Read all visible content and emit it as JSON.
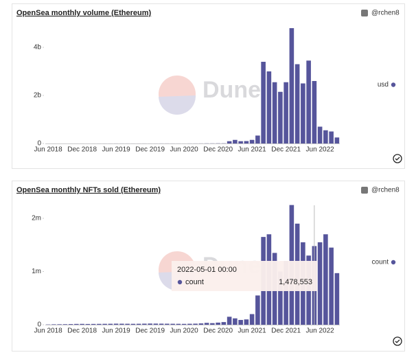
{
  "chart_data": [
    {
      "type": "bar",
      "title": "OpenSea monthly volume (Ethereum)",
      "author": "@rchen8",
      "watermark": "Dune",
      "categories": [
        "Jun 2018",
        null,
        null,
        null,
        null,
        null,
        "Dec 2018",
        null,
        null,
        null,
        null,
        null,
        "Jun 2019",
        null,
        null,
        null,
        null,
        null,
        "Dec 2019",
        null,
        null,
        null,
        null,
        null,
        "Jun 2020",
        null,
        null,
        null,
        null,
        null,
        "Dec 2020",
        null,
        null,
        null,
        null,
        null,
        "Jun 2021",
        null,
        null,
        null,
        null,
        null,
        "Dec 2021",
        null,
        null,
        null,
        null,
        null,
        "Jun 2022",
        null,
        null,
        null
      ],
      "series": [
        {
          "name": "usd",
          "color": "#56559b",
          "values": [
            400000,
            800000,
            600000,
            500000,
            700000,
            900000,
            1200000,
            1000000,
            1300000,
            1400000,
            1800000,
            2000000,
            2600000,
            2200000,
            2100000,
            1800000,
            2000000,
            2300000,
            1900000,
            2000000,
            2800000,
            3000000,
            2500000,
            2300000,
            1500000,
            2800000,
            3300000,
            4000000,
            6000000,
            6000000,
            8000000,
            8000000,
            95000000,
            150000000,
            95000000,
            100000000,
            150000000,
            330000000,
            3400000000,
            3000000000,
            2550000000,
            2150000000,
            2550000000,
            4800000000,
            3300000000,
            2500000000,
            3450000000,
            2600000000,
            700000000,
            550000000,
            500000000,
            250000000
          ]
        }
      ],
      "ylim": [
        0,
        5000000000
      ],
      "yticks": [
        0,
        {
          "value": 2000000000,
          "label": "2b"
        },
        {
          "value": 4000000000,
          "label": "4b"
        }
      ],
      "grid": false
    },
    {
      "type": "bar",
      "title": "OpenSea monthly NFTs sold (Ethereum)",
      "author": "@rchen8",
      "watermark": "Dune",
      "categories": [
        "Jun 2018",
        null,
        null,
        null,
        null,
        null,
        "Dec 2018",
        null,
        null,
        null,
        null,
        null,
        "Jun 2019",
        null,
        null,
        null,
        null,
        null,
        "Dec 2019",
        null,
        null,
        null,
        null,
        null,
        "Jun 2020",
        null,
        null,
        null,
        null,
        null,
        "Dec 2020",
        null,
        null,
        null,
        null,
        null,
        "Jun 2021",
        null,
        null,
        null,
        null,
        null,
        "Dec 2021",
        null,
        null,
        null,
        null,
        null,
        "Jun 2022",
        null,
        null,
        null
      ],
      "series": [
        {
          "name": "count",
          "color": "#56559b",
          "values": [
            5000,
            8000,
            9000,
            10000,
            12000,
            15000,
            16000,
            14000,
            15000,
            16000,
            17000,
            18000,
            20000,
            19000,
            18000,
            17000,
            18000,
            20000,
            22000,
            21000,
            20000,
            19000,
            18000,
            17000,
            16000,
            18000,
            20000,
            25000,
            35000,
            30000,
            40000,
            50000,
            150000,
            120000,
            90000,
            100000,
            200000,
            550000,
            1650000,
            1700000,
            1350000,
            1000000,
            1200000,
            2250000,
            1900000,
            1550000,
            1300000,
            1478553,
            1550000,
            1700000,
            1450000,
            970000
          ]
        }
      ],
      "ylim": [
        0,
        2400000
      ],
      "yticks": [
        0,
        {
          "value": 1000000,
          "label": "1m"
        },
        {
          "value": 2000000,
          "label": "2m"
        }
      ],
      "grid": false,
      "tooltip": {
        "index": 47,
        "date": "2022-05-01 00:00",
        "label": "count",
        "value_label": "1,478,553"
      }
    }
  ]
}
